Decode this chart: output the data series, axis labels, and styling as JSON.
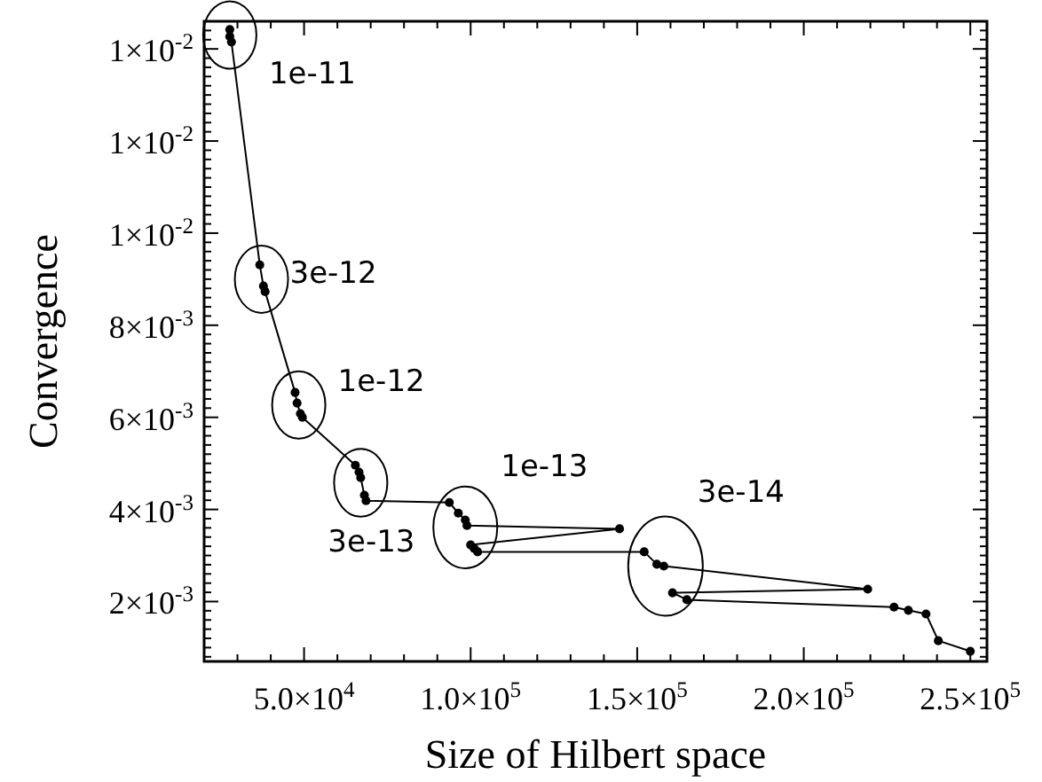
{
  "chart_data": {
    "type": "line",
    "xlabel": "Size of Hilbert space",
    "ylabel": "Convergence",
    "marker": "circle",
    "line_style": "solid",
    "x": [
      27700,
      27700,
      28200,
      36700,
      37800,
      38300,
      47300,
      47900,
      48900,
      49500,
      65400,
      66500,
      67000,
      68100,
      68600,
      93600,
      96300,
      98400,
      98900,
      144700,
      100000,
      101100,
      102100,
      152100,
      155900,
      158000,
      219200,
      160600,
      164900,
      227100,
      231400,
      236700,
      240400,
      250000
    ],
    "series": [
      {
        "color": "#000000",
        "values": [
          0.01442,
          0.01427,
          0.01415,
          0.00931,
          0.00885,
          0.00873,
          0.00654,
          0.00631,
          0.00608,
          0.006,
          0.00496,
          0.00481,
          0.00469,
          0.00431,
          0.00419,
          0.00415,
          0.00392,
          0.00377,
          0.00365,
          0.00358,
          0.00323,
          0.00315,
          0.00308,
          0.00308,
          0.00281,
          0.00277,
          0.00227,
          0.00219,
          0.00204,
          0.00188,
          0.00181,
          0.00173,
          0.00115,
          0.00092
        ]
      }
    ],
    "xlim": [
      20000,
      255000
    ],
    "ylim": [
      0.0007,
      0.0146
    ],
    "xticks": [
      {
        "value": 20000,
        "label": null
      },
      {
        "value": 30000,
        "label": null
      },
      {
        "value": 40000,
        "label": null
      },
      {
        "value": 50000,
        "label": "5.0×10$^{4}$"
      },
      {
        "value": 60000,
        "label": null
      },
      {
        "value": 70000,
        "label": null
      },
      {
        "value": 80000,
        "label": null
      },
      {
        "value": 90000,
        "label": null
      },
      {
        "value": 100000,
        "label": "1.0×10$^{5}$"
      },
      {
        "value": 110000,
        "label": null
      },
      {
        "value": 120000,
        "label": null
      },
      {
        "value": 130000,
        "label": null
      },
      {
        "value": 140000,
        "label": null
      },
      {
        "value": 150000,
        "label": "1.5×10$^{5}$"
      },
      {
        "value": 160000,
        "label": null
      },
      {
        "value": 170000,
        "label": null
      },
      {
        "value": 180000,
        "label": null
      },
      {
        "value": 190000,
        "label": null
      },
      {
        "value": 200000,
        "label": "2.0×10$^{5}$"
      },
      {
        "value": 210000,
        "label": null
      },
      {
        "value": 220000,
        "label": null
      },
      {
        "value": 230000,
        "label": null
      },
      {
        "value": 240000,
        "label": null
      },
      {
        "value": 250000,
        "label": "2.5×10$^{5}$"
      }
    ],
    "yticks": [
      {
        "value": 0.0008,
        "label": null
      },
      {
        "value": 0.001,
        "label": null
      },
      {
        "value": 0.0012,
        "label": null
      },
      {
        "value": 0.0014,
        "label": null
      },
      {
        "value": 0.0016,
        "label": null
      },
      {
        "value": 0.0018,
        "label": null
      },
      {
        "value": 0.002,
        "label": "2×10$^{-3}$"
      },
      {
        "value": 0.0022,
        "label": null
      },
      {
        "value": 0.0024,
        "label": null
      },
      {
        "value": 0.0026,
        "label": null
      },
      {
        "value": 0.0028,
        "label": null
      },
      {
        "value": 0.003,
        "label": null
      },
      {
        "value": 0.0032,
        "label": null
      },
      {
        "value": 0.0034,
        "label": null
      },
      {
        "value": 0.0036,
        "label": null
      },
      {
        "value": 0.0038,
        "label": null
      },
      {
        "value": 0.004,
        "label": "4×10$^{-3}$"
      },
      {
        "value": 0.0042,
        "label": null
      },
      {
        "value": 0.0044,
        "label": null
      },
      {
        "value": 0.0046,
        "label": null
      },
      {
        "value": 0.0048,
        "label": null
      },
      {
        "value": 0.005,
        "label": null
      },
      {
        "value": 0.0052,
        "label": null
      },
      {
        "value": 0.0054,
        "label": null
      },
      {
        "value": 0.0056,
        "label": null
      },
      {
        "value": 0.0058,
        "label": null
      },
      {
        "value": 0.006,
        "label": "6×10$^{-3}$"
      },
      {
        "value": 0.0062,
        "label": null
      },
      {
        "value": 0.0064,
        "label": null
      },
      {
        "value": 0.0066,
        "label": null
      },
      {
        "value": 0.0068,
        "label": null
      },
      {
        "value": 0.007,
        "label": null
      },
      {
        "value": 0.0072,
        "label": null
      },
      {
        "value": 0.0074,
        "label": null
      },
      {
        "value": 0.0076,
        "label": null
      },
      {
        "value": 0.0078,
        "label": null
      },
      {
        "value": 0.008,
        "label": "8×10$^{-3}$"
      },
      {
        "value": 0.0082,
        "label": null
      },
      {
        "value": 0.0084,
        "label": null
      },
      {
        "value": 0.0086,
        "label": null
      },
      {
        "value": 0.0088,
        "label": null
      },
      {
        "value": 0.009,
        "label": null
      },
      {
        "value": 0.0092,
        "label": null
      },
      {
        "value": 0.0094,
        "label": null
      },
      {
        "value": 0.0096,
        "label": null
      },
      {
        "value": 0.0098,
        "label": null
      },
      {
        "value": 0.01,
        "label": "1×10$^{-2}$"
      },
      {
        "value": 0.0102,
        "label": null
      },
      {
        "value": 0.0104,
        "label": null
      },
      {
        "value": 0.0106,
        "label": null
      },
      {
        "value": 0.0108,
        "label": null
      },
      {
        "value": 0.011,
        "label": null
      },
      {
        "value": 0.0112,
        "label": null
      },
      {
        "value": 0.0114,
        "label": null
      },
      {
        "value": 0.0116,
        "label": null
      },
      {
        "value": 0.0118,
        "label": null
      },
      {
        "value": 0.012,
        "label": "1×10$^{-2}$"
      },
      {
        "value": 0.0122,
        "label": null
      },
      {
        "value": 0.0124,
        "label": null
      },
      {
        "value": 0.0126,
        "label": null
      },
      {
        "value": 0.0128,
        "label": null
      },
      {
        "value": 0.013,
        "label": null
      },
      {
        "value": 0.0132,
        "label": null
      },
      {
        "value": 0.0134,
        "label": null
      },
      {
        "value": 0.0136,
        "label": null
      },
      {
        "value": 0.0138,
        "label": null
      },
      {
        "value": 0.014,
        "label": "1×10$^{-2}$"
      },
      {
        "value": 0.0142,
        "label": null
      },
      {
        "value": 0.0144,
        "label": null
      }
    ],
    "annotations": [
      {
        "text": "1e-11",
        "x": 27700,
        "y": 0.0143
      },
      {
        "text": "3e-12",
        "x": 37200,
        "y": 0.009
      },
      {
        "text": "1e-12",
        "x": 48400,
        "y": 0.00627
      },
      {
        "text": "3e-13",
        "x": 67000,
        "y": 0.00458
      },
      {
        "text": "1e-13",
        "x": 98400,
        "y": 0.00361
      },
      {
        "text": "3e-14",
        "x": 158500,
        "y": 0.00277
      }
    ]
  }
}
